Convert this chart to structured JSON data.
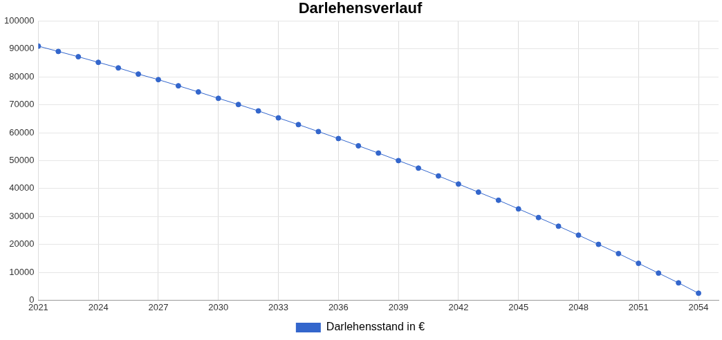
{
  "chart_data": {
    "type": "line",
    "title": "Darlehensverlauf",
    "x": [
      2021,
      2022,
      2023,
      2024,
      2025,
      2026,
      2027,
      2028,
      2029,
      2030,
      2031,
      2032,
      2033,
      2034,
      2035,
      2036,
      2037,
      2038,
      2039,
      2040,
      2041,
      2042,
      2043,
      2044,
      2045,
      2046,
      2047,
      2048,
      2049,
      2050,
      2051,
      2052,
      2053,
      2054
    ],
    "series": [
      {
        "name": "Darlehensstand in €",
        "color": "#3366cc",
        "values": [
          91000,
          89100,
          87200,
          85200,
          83200,
          81000,
          79000,
          76800,
          74600,
          72300,
          70100,
          67800,
          65300,
          62900,
          60400,
          57900,
          55300,
          52700,
          50000,
          47300,
          44500,
          41600,
          38700,
          35800,
          32700,
          29600,
          26500,
          23300,
          20000,
          16700,
          13200,
          9700,
          6200,
          2500
        ]
      }
    ],
    "xlim": [
      2021,
      2055
    ],
    "xticks": [
      2021,
      2024,
      2027,
      2030,
      2033,
      2036,
      2039,
      2042,
      2045,
      2048,
      2051,
      2054
    ],
    "ylim": [
      0,
      100000
    ],
    "yticks": [
      0,
      10000,
      20000,
      30000,
      40000,
      50000,
      60000,
      70000,
      80000,
      90000,
      100000
    ],
    "grid": true,
    "legend": "bottom",
    "marker": "circle",
    "line_style": "solid"
  }
}
